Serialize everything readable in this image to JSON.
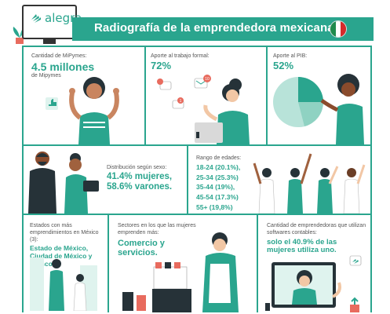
{
  "header": {
    "logo_text": "alegra",
    "title": "Radiografía de la emprendedora mexicana",
    "brand_color": "#2aa58e"
  },
  "cards": {
    "mipymes": {
      "label": "Cantidad de MiPymes:",
      "value": "4.5 millones",
      "sublabel": "de Mipymes"
    },
    "trabajo": {
      "label": "Aporte al trabajo formal:",
      "value": "72%"
    },
    "pib": {
      "label": "Aporte al PIB:",
      "value": "52%"
    },
    "sexo": {
      "label": "Distribución según sexo:",
      "value_line1": "41.4% mujeres,",
      "value_line2": "58.6% varones."
    },
    "edades": {
      "label": "Rango de edades:",
      "ranges": [
        "18-24 (20.1%),",
        "25-34 (25.3%)",
        "35-44 (19%),",
        "45-54 (17.3%)",
        "55+ (19,8%)"
      ]
    },
    "estados": {
      "label": "Estados con más emprendimientos en México (3):",
      "value": "Estado de México, Ciudad de México y Jalisco."
    },
    "sectores": {
      "label": "Sectores en los que las mujeres emprenden más:",
      "value": "Comercio y servicios."
    },
    "software": {
      "label": "Cantidad de emprendedoras que utilizan softwares contables:",
      "value": "solo el 40.9% de las mujeres utiliza uno."
    }
  },
  "notification_counts": [
    "10",
    "1"
  ],
  "colors": {
    "accent": "#2aa58e",
    "dark": "#263238",
    "skin": "#a0613e",
    "pink": "#e86b5e"
  }
}
